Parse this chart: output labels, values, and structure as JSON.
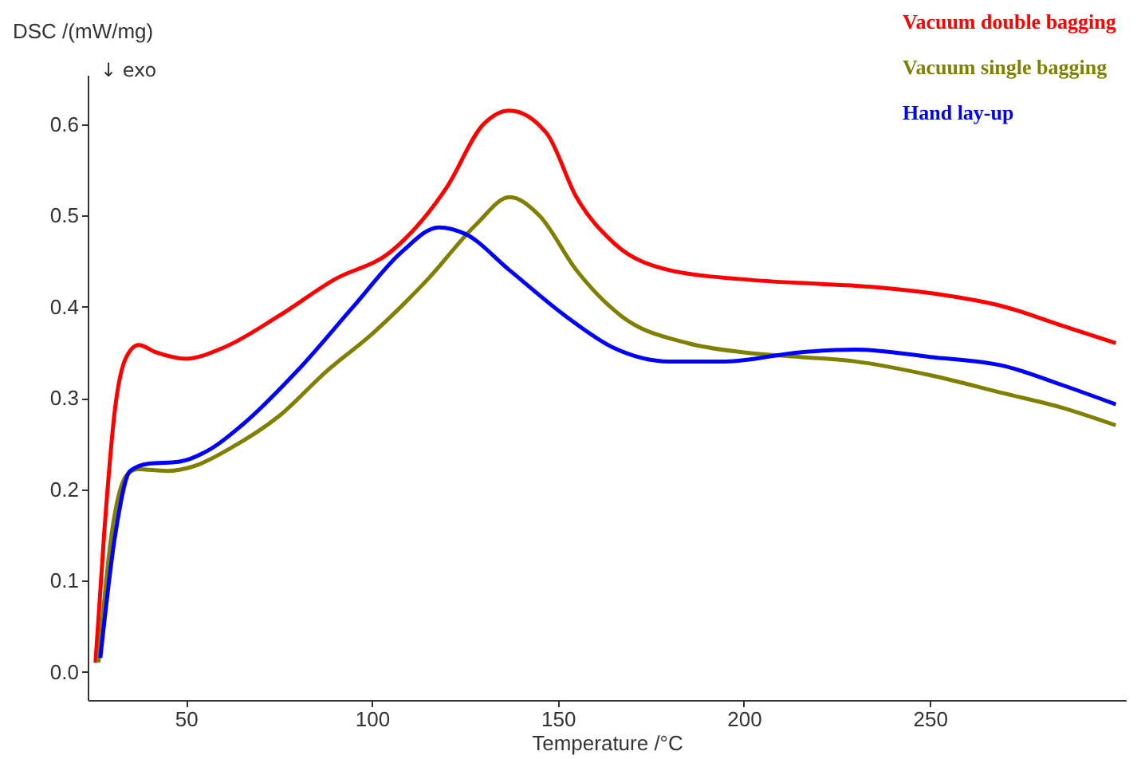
{
  "chart_data": {
    "type": "line",
    "xlabel": "Temperature /°C",
    "ylabel": "DSC /(mW/mg)",
    "annotations": [
      "↓ exo"
    ],
    "xlim": [
      23.6,
      302.7
    ],
    "xticks": [
      50,
      100,
      150,
      200,
      250
    ],
    "ylim": [
      -0.031,
      0.654
    ],
    "yticks": [
      {
        "value": 0,
        "label": "0.0"
      },
      0.1,
      0.2,
      0.3,
      0.4,
      0.5,
      0.6
    ],
    "grid": false,
    "legend": "top right",
    "marker": "none",
    "line_style": "solid",
    "series": [
      {
        "name": "Vacuum double bagging",
        "color": "#ff0000",
        "x": [
          25.7,
          28,
          31,
          34,
          37.3,
          42,
          50,
          60,
          75,
          90,
          105,
          120,
          130,
          137,
          147,
          155,
          165,
          180,
          200,
          220,
          230,
          250,
          270,
          285,
          300
        ],
        "values": [
          0.01,
          0.15,
          0.29,
          0.345,
          0.358,
          0.35,
          0.343,
          0.355,
          0.39,
          0.43,
          0.46,
          0.53,
          0.6,
          0.615,
          0.59,
          0.52,
          0.47,
          0.44,
          0.43,
          0.425,
          0.423,
          0.415,
          0.4,
          0.38,
          0.36
        ]
      },
      {
        "name": "Vacuum single bagging",
        "color": "#808000",
        "x": [
          26.5,
          30,
          34,
          37,
          45,
          52,
          62,
          75,
          88,
          100,
          115,
          128,
          137,
          145,
          155,
          167,
          185,
          200,
          215,
          230,
          250,
          270,
          285,
          300
        ],
        "values": [
          0.01,
          0.15,
          0.215,
          0.222,
          0.22,
          0.225,
          0.245,
          0.28,
          0.33,
          0.37,
          0.43,
          0.49,
          0.52,
          0.5,
          0.44,
          0.39,
          0.36,
          0.35,
          0.345,
          0.34,
          0.325,
          0.305,
          0.29,
          0.27
        ]
      },
      {
        "name": "Hand lay-up",
        "color": "#0000ff",
        "x": [
          27,
          31,
          35,
          40,
          48,
          57,
          65,
          80,
          95,
          108,
          118,
          125,
          137,
          152,
          165,
          180,
          195,
          215,
          230,
          250,
          270,
          285,
          300
        ],
        "values": [
          0.015,
          0.15,
          0.22,
          0.228,
          0.23,
          0.245,
          0.27,
          0.33,
          0.4,
          0.46,
          0.487,
          0.48,
          0.44,
          0.39,
          0.355,
          0.34,
          0.34,
          0.35,
          0.353,
          0.345,
          0.335,
          0.315,
          0.293
        ]
      }
    ]
  }
}
